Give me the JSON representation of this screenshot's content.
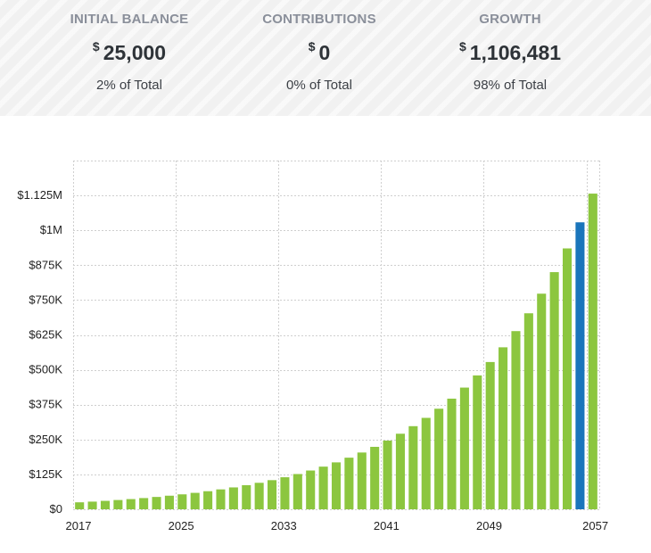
{
  "summary": {
    "initial": {
      "label": "INITIAL BALANCE",
      "currency": "$",
      "value": "25,000",
      "pct": "2% of Total"
    },
    "contributions": {
      "label": "CONTRIBUTIONS",
      "currency": "$",
      "value": "0",
      "pct": "0% of Total"
    },
    "growth": {
      "label": "GROWTH",
      "currency": "$",
      "value": "1,106,481",
      "pct": "98% of Total"
    }
  },
  "colors": {
    "bar": "#8cc63f",
    "highlight": "#1a75bb",
    "grid": "#cfcfcf"
  },
  "chart_data": {
    "type": "bar",
    "x": [
      2017,
      2018,
      2019,
      2020,
      2021,
      2022,
      2023,
      2024,
      2025,
      2026,
      2027,
      2028,
      2029,
      2030,
      2031,
      2032,
      2033,
      2034,
      2035,
      2036,
      2037,
      2038,
      2039,
      2040,
      2041,
      2042,
      2043,
      2044,
      2045,
      2046,
      2047,
      2048,
      2049,
      2050,
      2051,
      2052,
      2053,
      2054,
      2055,
      2056,
      2057
    ],
    "values": [
      25000,
      27500,
      30250,
      33275,
      36603,
      40263,
      44289,
      48718,
      53590,
      58949,
      64844,
      71328,
      78461,
      86307,
      94937,
      104431,
      114874,
      126362,
      138998,
      152898,
      168187,
      185006,
      203507,
      223858,
      246244,
      270868,
      297955,
      327750,
      360525,
      396578,
      436236,
      479859,
      527845,
      580630,
      638693,
      702562,
      772818,
      850100,
      935110,
      1028621,
      1131481
    ],
    "highlight_index": 39,
    "x_ticks": [
      "2017",
      "2025",
      "2033",
      "2041",
      "2049",
      "2057"
    ],
    "y_ticks": [
      "$0",
      "$125K",
      "$250K",
      "$375K",
      "$500K",
      "$625K",
      "$750K",
      "$875K",
      "$1M",
      "$1.125M"
    ],
    "ylim": [
      0,
      1250000
    ],
    "grid": true
  }
}
